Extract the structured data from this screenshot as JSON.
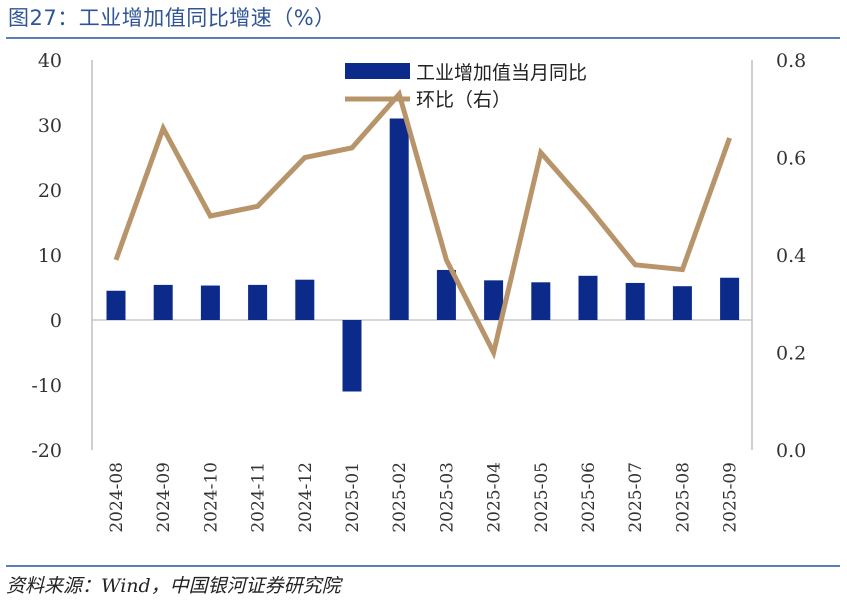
{
  "page": {
    "title": "图27：工业增加值同比增速（%）",
    "source": "资料来源：Wind，中国银河证券研究院"
  },
  "colors": {
    "bar": "#0b2a8a",
    "line": "#b8946a",
    "axis": "#bfbfbf",
    "title": "#2f5597"
  },
  "chart_data": {
    "type": "bar+line",
    "categories": [
      "2024-08",
      "2024-09",
      "2024-10",
      "2024-11",
      "2024-12",
      "2025-01",
      "2025-02",
      "2025-03",
      "2025-04",
      "2025-05",
      "2025-06",
      "2025-07",
      "2025-08",
      "2025-09"
    ],
    "series": [
      {
        "name": "工业增加值当月同比",
        "type": "bar",
        "axis": "left",
        "values": [
          4.5,
          5.4,
          5.3,
          5.4,
          6.2,
          -11.0,
          31.0,
          7.7,
          6.1,
          5.8,
          6.8,
          5.7,
          5.2,
          6.5
        ]
      },
      {
        "name": "环比（右）",
        "type": "line",
        "axis": "right",
        "values": [
          0.39,
          0.66,
          0.48,
          0.5,
          0.6,
          0.62,
          0.73,
          0.39,
          0.2,
          0.61,
          0.5,
          0.38,
          0.37,
          0.64
        ]
      }
    ],
    "y_left": {
      "min": -20,
      "max": 40,
      "ticks": [
        "40",
        "30",
        "20",
        "10",
        "0",
        "-10",
        "-20"
      ]
    },
    "y_right": {
      "min": 0,
      "max": 0.8,
      "ticks": [
        "0.8",
        "0.6",
        "0.4",
        "0.2",
        "0.0"
      ]
    },
    "legend": [
      "工业增加值当月同比",
      "环比（右）"
    ],
    "legend_position": "top-center",
    "grid": false
  }
}
